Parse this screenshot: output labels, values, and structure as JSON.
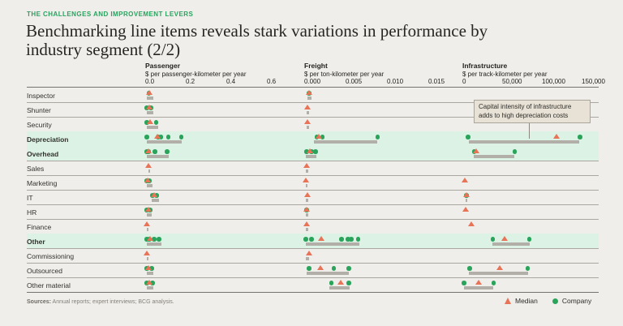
{
  "page": {
    "eyebrow": "THE CHALLENGES AND IMPROVEMENT LEVERS",
    "title_line1": "Benchmarking line items reveals stark variations in performance by",
    "title_line2": "industry segment (2/2)",
    "sources_label": "Sources:",
    "sources_text": " Annual reports; expert interviews; BCG analysis."
  },
  "legend": {
    "median_label": "Median",
    "company_label": "Company"
  },
  "colors": {
    "background": "#f0eeea",
    "eyebrow_green": "#27a35f",
    "company_green": "#2aa45b",
    "median_orange": "#e87357",
    "range_gray": "#b2afa8",
    "highlight_green": "#dbf2e4",
    "callout_bg": "#e7e1d6"
  },
  "chart_data": {
    "type": "dot-plot",
    "description": "Benchmark dot plot: green dots = individual companies, orange triangle = median, gray bar = range, per cost line item across three industry segments",
    "callout": {
      "text": "Capital intensity of infrastructure adds to high depreciation costs",
      "target_row": "Depreciation",
      "target_panel": "infrastructure"
    },
    "panels": [
      {
        "id": "passenger",
        "title": "Passenger",
        "unit": "$ per passenger-kilometer per year",
        "ticks": [
          "0.0",
          "0.2",
          "0.4",
          "0.6"
        ],
        "tick_values": [
          0,
          0.2,
          0.4,
          0.6
        ]
      },
      {
        "id": "freight",
        "title": "Freight",
        "unit": "$ per ton-kilometer per year",
        "ticks": [
          "0.000",
          "0.005",
          "0.010",
          "0.015"
        ],
        "tick_values": [
          0,
          0.005,
          0.01,
          0.015
        ]
      },
      {
        "id": "infrastructure",
        "title": "Infrastructure",
        "unit": "$ per track-kilometer per year",
        "ticks": [
          "0",
          "50,000",
          "100,000",
          "150,000"
        ],
        "tick_values": [
          0,
          50000,
          100000,
          150000
        ]
      }
    ],
    "rows": [
      {
        "label": "Inspector",
        "bold": false,
        "highlighted": false,
        "panels": {
          "passenger": {
            "companies": [
              0.01
            ],
            "median": 0.01,
            "range": [
              0,
              0.03
            ]
          },
          "freight": {
            "companies": [
              0.0004
            ],
            "median": 0.0004,
            "range": [
              0.0002,
              0.0007
            ]
          },
          "infrastructure": null
        }
      },
      {
        "label": "Shunter",
        "bold": false,
        "highlighted": false,
        "panels": {
          "passenger": {
            "companies": [
              0.0,
              0.02
            ],
            "median": 0.01,
            "range": [
              0,
              0.03
            ]
          },
          "freight": {
            "companies": [],
            "median": 0.0002,
            "range": [
              0.0001,
              0.0004
            ]
          },
          "infrastructure": null
        }
      },
      {
        "label": "Security",
        "bold": false,
        "highlighted": false,
        "panels": {
          "passenger": {
            "companies": [
              0.0,
              0.045
            ],
            "median": 0.015,
            "range": [
              0,
              0.055
            ]
          },
          "freight": {
            "companies": [],
            "median": 0.0002,
            "range": [
              0.0001,
              0.0004
            ]
          },
          "infrastructure": null
        }
      },
      {
        "label": "Depreciation",
        "bold": true,
        "highlighted": true,
        "panels": {
          "passenger": {
            "companies": [
              0.0,
              0.055,
              0.07,
              0.105,
              0.17
            ],
            "median": 0.05,
            "range": [
              0,
              0.17
            ]
          },
          "freight": {
            "companies": [
              0.0013,
              0.002,
              0.0087
            ],
            "median": 0.0016,
            "range": [
              0.001,
              0.0086
            ]
          },
          "infrastructure": {
            "companies": [
              5000,
              146000
            ],
            "median": 116000,
            "range": [
              6000,
              145000
            ]
          }
        }
      },
      {
        "label": "Overhead",
        "bold": true,
        "highlighted": true,
        "panels": {
          "passenger": {
            "companies": [
              0.0,
              0.008,
              0.04,
              0.1
            ],
            "median": 0.008,
            "range": [
              0,
              0.108
            ]
          },
          "freight": {
            "companies": [
              0.0001,
              0.0007,
              0.0012
            ],
            "median": 0.0005,
            "range": [
              0,
              0.0013
            ]
          },
          "infrastructure": {
            "companies": [
              13000,
              64000
            ],
            "median": 15000,
            "range": [
              12000,
              63000
            ]
          }
        }
      },
      {
        "label": "Sales",
        "bold": false,
        "highlighted": false,
        "panels": {
          "passenger": {
            "companies": [],
            "median": 0.008,
            "range": [
              0.006,
              0.012
            ]
          },
          "freight": {
            "companies": [],
            "median": 0.0001,
            "range": [
              0,
              0.0003
            ]
          },
          "infrastructure": null
        }
      },
      {
        "label": "Marketing",
        "bold": false,
        "highlighted": false,
        "panels": {
          "passenger": {
            "companies": [
              0.0,
              0.012
            ],
            "median": 0.004,
            "range": [
              0,
              0.028
            ]
          },
          "freight": {
            "companies": [],
            "median": 0.0,
            "range": [
              0,
              0.0002
            ]
          },
          "infrastructure": {
            "companies": [],
            "median": 1000,
            "range": null
          }
        }
      },
      {
        "label": "IT",
        "bold": false,
        "highlighted": false,
        "panels": {
          "passenger": {
            "companies": [
              0.028,
              0.048
            ],
            "median": 0.036,
            "range": [
              0.025,
              0.06
            ]
          },
          "freight": {
            "companies": [],
            "median": 0.0002,
            "range": [
              0,
              0.0003
            ]
          },
          "infrastructure": {
            "companies": [
              3000
            ],
            "median": 3000,
            "range": [
              2000,
              4500
            ]
          }
        }
      },
      {
        "label": "HR",
        "bold": false,
        "highlighted": false,
        "panels": {
          "passenger": {
            "companies": [
              0.0,
              0.016
            ],
            "median": 0.006,
            "range": [
              0,
              0.025
            ]
          },
          "freight": {
            "companies": [
              0.0001
            ],
            "median": 0.0001,
            "range": [
              0,
              0.0003
            ]
          },
          "infrastructure": {
            "companies": [],
            "median": 2000,
            "range": null
          }
        }
      },
      {
        "label": "Finance",
        "bold": false,
        "highlighted": false,
        "panels": {
          "passenger": {
            "companies": [],
            "median": 0.0,
            "range": [
              0,
              0.008
            ]
          },
          "freight": {
            "companies": [],
            "median": 0.0001,
            "range": [
              0,
              0.0003
            ]
          },
          "infrastructure": {
            "companies": [],
            "median": 9000,
            "range": null
          }
        }
      },
      {
        "label": "Other",
        "bold": true,
        "highlighted": true,
        "panels": {
          "passenger": {
            "companies": [
              0.0,
              0.012,
              0.036,
              0.06
            ],
            "median": 0.014,
            "range": [
              0,
              0.07
            ]
          },
          "freight": {
            "companies": [
              0.0,
              0.0007,
              0.0043,
              0.0051,
              0.0055,
              0.0063
            ],
            "median": 0.0019,
            "range": [
              0,
              0.0065
            ]
          },
          "infrastructure": {
            "companies": [
              36000,
              82000
            ],
            "median": 51000,
            "range": [
              36000,
              83000
            ]
          }
        }
      },
      {
        "label": "Commissioning",
        "bold": false,
        "highlighted": false,
        "panels": {
          "passenger": {
            "companies": [],
            "median": 0.0,
            "range": [
              0,
              0.008
            ]
          },
          "freight": {
            "companies": [],
            "median": 0.0004,
            "range": [
              0,
              0.0004
            ]
          },
          "infrastructure": null
        }
      },
      {
        "label": "Outsourced",
        "bold": false,
        "highlighted": false,
        "panels": {
          "passenger": {
            "companies": [
              0.0,
              0.024
            ],
            "median": 0.008,
            "range": [
              0,
              0.03
            ]
          },
          "freight": {
            "companies": [
              0.0004,
              0.0034,
              0.0052
            ],
            "median": 0.0018,
            "range": [
              0.0001,
              0.0052
            ]
          },
          "infrastructure": {
            "companies": [
              7000,
              80000
            ],
            "median": 45000,
            "range": [
              6000,
              81000
            ]
          }
        }
      },
      {
        "label": "Other material",
        "bold": false,
        "highlighted": false,
        "panels": {
          "passenger": {
            "companies": [
              0.0,
              0.028
            ],
            "median": 0.012,
            "range": [
              0,
              0.032
            ]
          },
          "freight": {
            "companies": [
              0.0031,
              0.0052
            ],
            "median": 0.0042,
            "range": [
              0.0028,
              0.0053
            ]
          },
          "infrastructure": {
            "companies": [
              0,
              37000
            ],
            "median": 18000,
            "range": [
              0,
              37000
            ]
          }
        }
      }
    ]
  }
}
